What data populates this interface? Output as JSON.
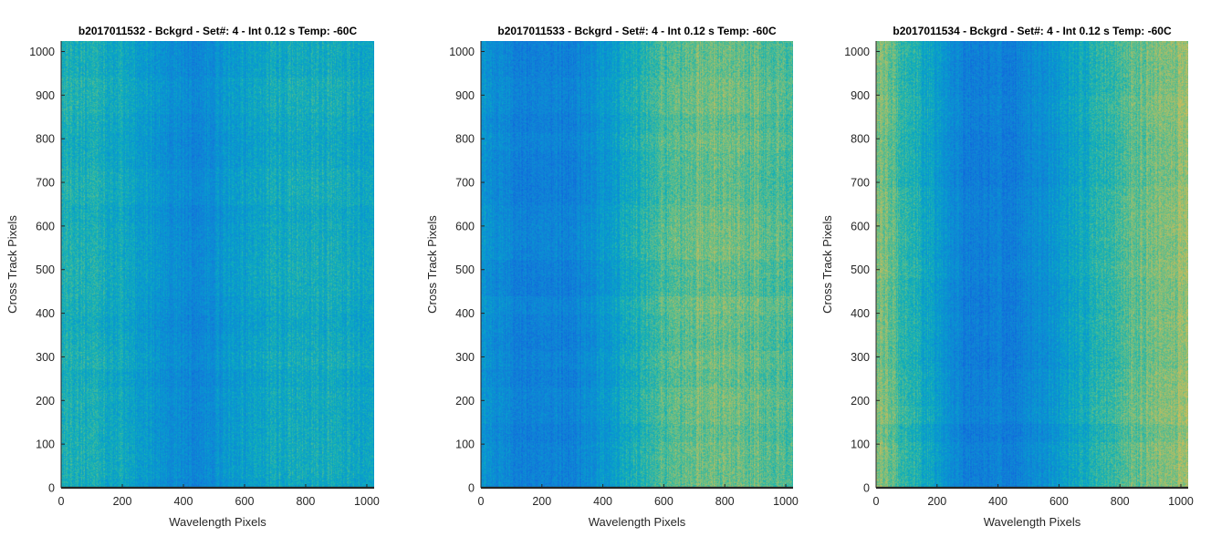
{
  "chart_data": [
    {
      "type": "heatmap",
      "title": "b2017011532 - Bckgrd - Set#: 4 - Int 0.12 s Temp: -60C",
      "xlabel": "Wavelength Pixels",
      "ylabel": "Cross Track Pixels",
      "xlim": [
        0,
        1024
      ],
      "ylim": [
        0,
        1024
      ],
      "xticks": [
        0,
        200,
        400,
        600,
        800,
        1000
      ],
      "yticks": [
        0,
        100,
        200,
        300,
        400,
        500,
        600,
        700,
        800,
        900,
        1000
      ],
      "colormap": "parula",
      "pattern": "uniform teal noise with a slightly bluer vertical band around x=400-500",
      "column_profile": [
        0.55,
        0.52,
        0.44,
        0.34,
        0.46,
        0.52,
        0.52,
        0.48
      ]
    },
    {
      "type": "heatmap",
      "title": "b2017011533 - Bckgrd - Set#: 4 - Int 0.12 s Temp: -60C",
      "xlabel": "Wavelength Pixels",
      "ylabel": "Cross Track Pixels",
      "xlim": [
        0,
        1024
      ],
      "ylim": [
        0,
        1024
      ],
      "xticks": [
        0,
        200,
        400,
        600,
        800,
        1000
      ],
      "yticks": [
        0,
        100,
        200,
        300,
        400,
        500,
        600,
        700,
        800,
        900,
        1000
      ],
      "colormap": "parula",
      "pattern": "bluer on the left half (x<450), greener-yellow on the right half",
      "column_profile": [
        0.4,
        0.32,
        0.32,
        0.46,
        0.62,
        0.68,
        0.66,
        0.62
      ]
    },
    {
      "type": "heatmap",
      "title": "b2017011534 - Bckgrd - Set#: 4 - Int 0.12 s Temp: -60C",
      "xlabel": "Wavelength Pixels",
      "ylabel": "Cross Track Pixels",
      "xlim": [
        0,
        1024
      ],
      "ylim": [
        0,
        1024
      ],
      "xticks": [
        0,
        200,
        400,
        600,
        800,
        1000
      ],
      "yticks": [
        0,
        100,
        200,
        300,
        400,
        500,
        600,
        700,
        800,
        900,
        1000
      ],
      "colormap": "parula",
      "pattern": "greenish-yellow at edges, blue band around x=150-500",
      "column_profile": [
        0.72,
        0.52,
        0.32,
        0.3,
        0.42,
        0.56,
        0.68,
        0.74
      ]
    }
  ]
}
